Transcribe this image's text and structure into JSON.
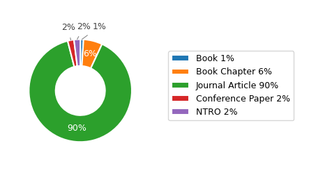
{
  "chart_data": {
    "type": "pie",
    "categories": [
      "Book 1%",
      "Book Chapter 6%",
      "Journal Article 90%",
      "Conference Paper 2%",
      "NTRO 2%"
    ],
    "values": [
      1,
      6,
      90,
      2,
      2
    ],
    "value_labels": [
      "1%",
      "6%",
      "90%",
      "2%",
      "2%"
    ],
    "data_labels": true,
    "legend": "center left"
  }
}
